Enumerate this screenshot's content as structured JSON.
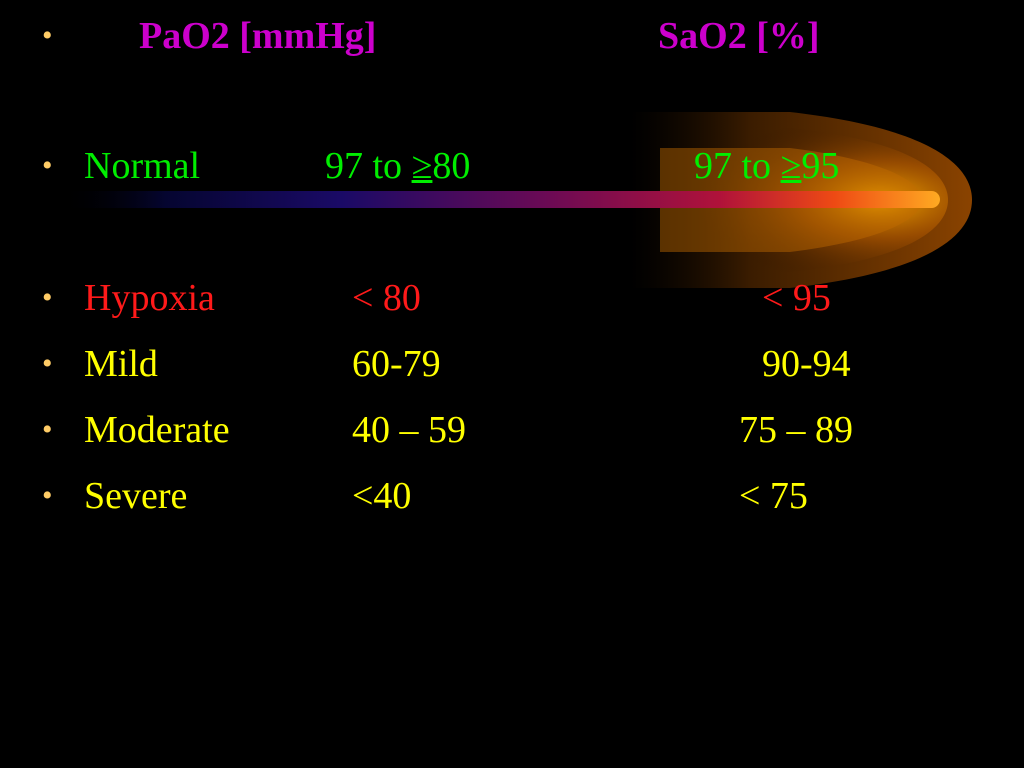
{
  "colors": {
    "background": "#000000",
    "bullet": "#ffcc66",
    "header": "#cc00cc",
    "normal": "#00ee00",
    "hypoxia": "#ff1a1a",
    "body": "#ffff00"
  },
  "decoration": {
    "icon": "comet-swoosh"
  },
  "table": {
    "header": {
      "bullet": "•",
      "pao2": "PaO2 [mmHg]",
      "sao2": "SaO2 [%]"
    },
    "normal": {
      "bullet": "•",
      "label": "Normal",
      "pao2_prefix": "97 to ",
      "pao2_symbol": "≥",
      "pao2_value": "80",
      "sao2_prefix": "97 to ",
      "sao2_symbol": "≥",
      "sao2_value": "95"
    },
    "rows": [
      {
        "bullet": "•",
        "label": "Hypoxia",
        "pao2": "< 80",
        "sao2": "< 95"
      },
      {
        "bullet": "•",
        "label": "Mild",
        "pao2": "60-79",
        "sao2": "90-94"
      },
      {
        "bullet": "•",
        "label": "Moderate",
        "pao2": "40 – 59",
        "sao2": "75 – 89"
      },
      {
        "bullet": "•",
        "label": "Severe",
        "pao2": "<40",
        "sao2": "< 75"
      }
    ]
  }
}
